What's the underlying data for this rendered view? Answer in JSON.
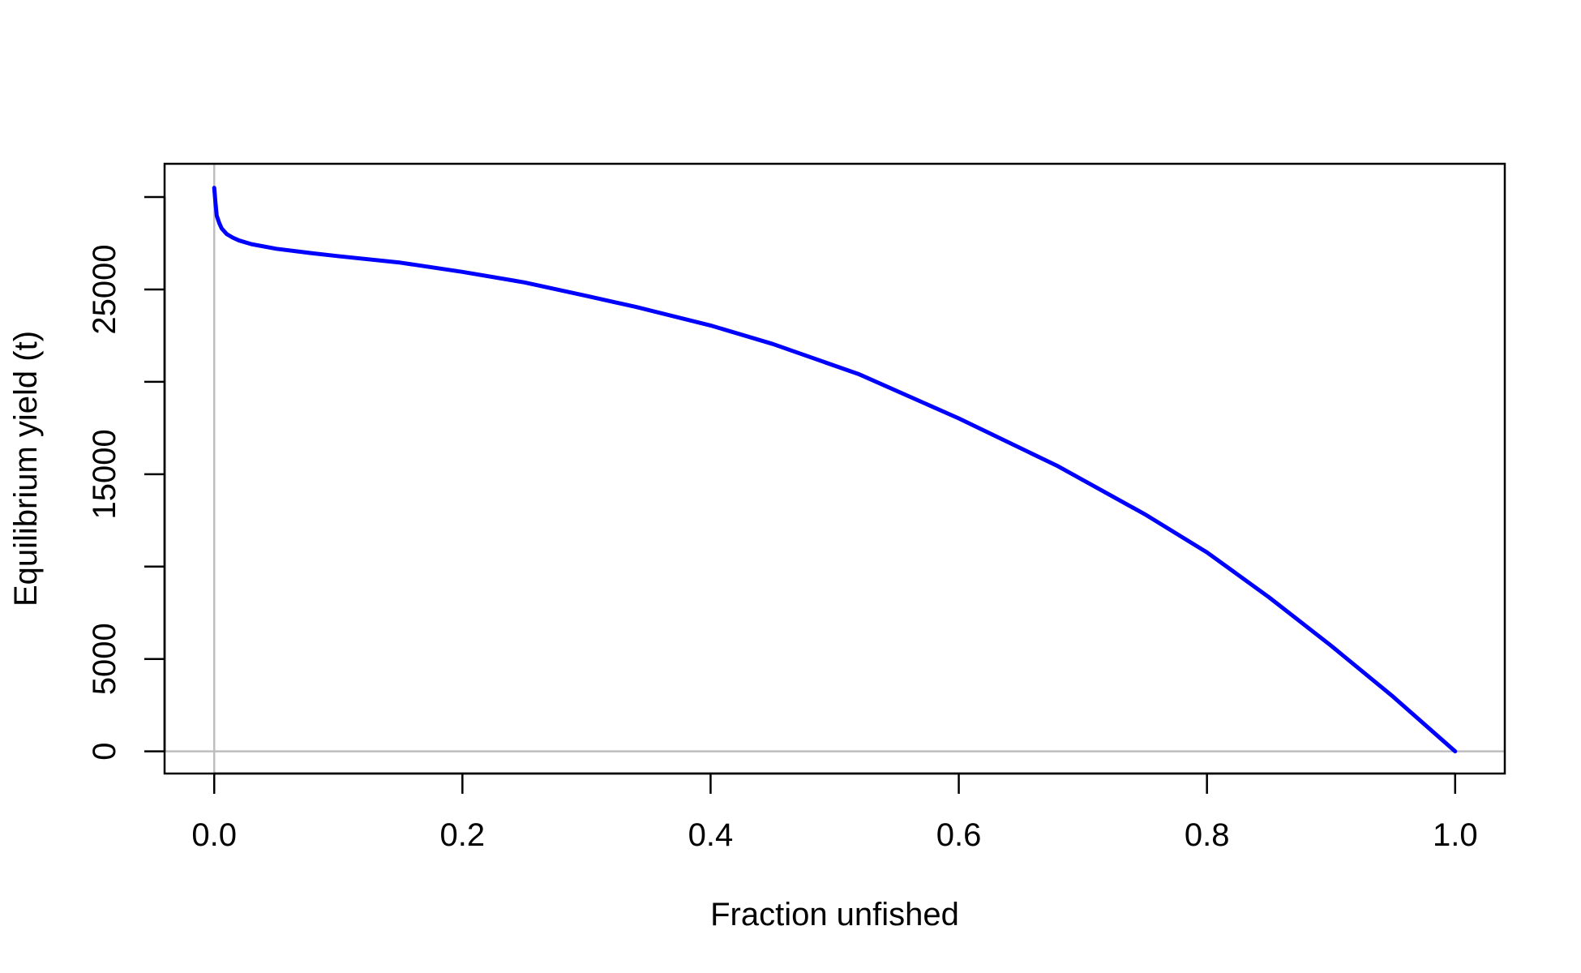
{
  "chart_data": {
    "type": "line",
    "title": "",
    "xlabel": "Fraction unfished",
    "ylabel": "Equilibrium yield (t)",
    "xlim": [
      -0.04,
      1.04
    ],
    "ylim": [
      -1200,
      31800
    ],
    "x_ticks": [
      0.0,
      0.2,
      0.4,
      0.6,
      0.8,
      1.0
    ],
    "x_tick_labels": [
      "0.0",
      "0.2",
      "0.4",
      "0.6",
      "0.8",
      "1.0"
    ],
    "y_ticks": [
      0,
      5000,
      10000,
      15000,
      20000,
      25000,
      30000
    ],
    "y_tick_labels": [
      "0",
      "5000",
      "",
      "15000",
      "",
      "25000",
      ""
    ],
    "reference_lines": {
      "vertical_x": 0,
      "horizontal_y": 0,
      "color": "#BEBEBE"
    },
    "grid": false,
    "legend": "none",
    "series": [
      {
        "color": "#0000FF",
        "x": [
          0.0,
          0.001,
          0.002,
          0.004,
          0.006,
          0.01,
          0.015,
          0.02,
          0.03,
          0.05,
          0.08,
          0.1,
          0.15,
          0.2,
          0.25,
          0.3,
          0.34,
          0.4,
          0.45,
          0.52,
          0.6,
          0.68,
          0.75,
          0.8,
          0.85,
          0.9,
          0.95,
          1.0
        ],
        "y": [
          30500,
          29700,
          29000,
          28600,
          28300,
          28000,
          27800,
          27650,
          27450,
          27200,
          26950,
          26800,
          26450,
          25950,
          25380,
          24650,
          24050,
          23050,
          22050,
          20400,
          18020,
          15430,
          12830,
          10770,
          8340,
          5720,
          2960,
          0
        ]
      }
    ]
  }
}
